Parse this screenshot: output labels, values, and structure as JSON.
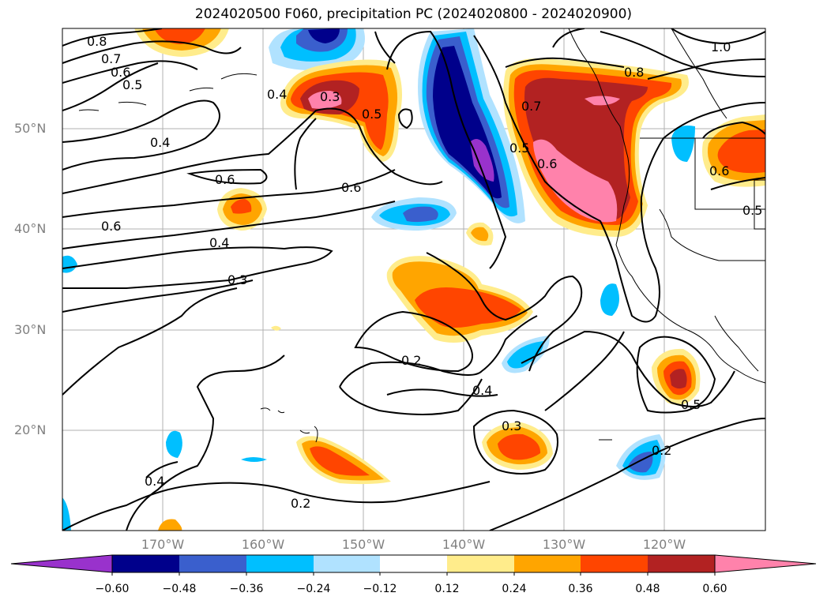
{
  "title": "2024020500 F060, precipitation PC (2024020800 - 2024020900)",
  "lat_labels": [
    "50°N",
    "40°N",
    "30°N",
    "20°N"
  ],
  "lon_labels": [
    "170°W",
    "160°W",
    "150°W",
    "140°W",
    "130°W",
    "120°W"
  ],
  "colorbar": {
    "ticks": [
      "−0.60",
      "−0.48",
      "−0.36",
      "−0.24",
      "−0.12",
      "0.12",
      "0.24",
      "0.36",
      "0.48",
      "0.60"
    ],
    "colors": [
      "#9932cc",
      "#00008b",
      "#3a5fcd",
      "#00bfff",
      "#b0e2ff",
      "#ffffff",
      "#ffec8b",
      "#ffa500",
      "#ff4500",
      "#b22222",
      "#ff82ab"
    ]
  },
  "contour_labels": [
    "0.8",
    "0.7",
    "0.6",
    "0.5",
    "0.4",
    "0.3",
    "0.5",
    "0.4",
    "0.6",
    "0.6",
    "0.6",
    "0.4",
    "0.3",
    "0.2",
    "0.4",
    "0.3",
    "0.2",
    "0.4",
    "0.5",
    "0.6",
    "0.7",
    "0.8",
    "1.0",
    "0.5",
    "0.6",
    "0.5",
    "0.2"
  ],
  "colors": {
    "grid": "#b0b0b0",
    "axis_label": "#808080"
  }
}
